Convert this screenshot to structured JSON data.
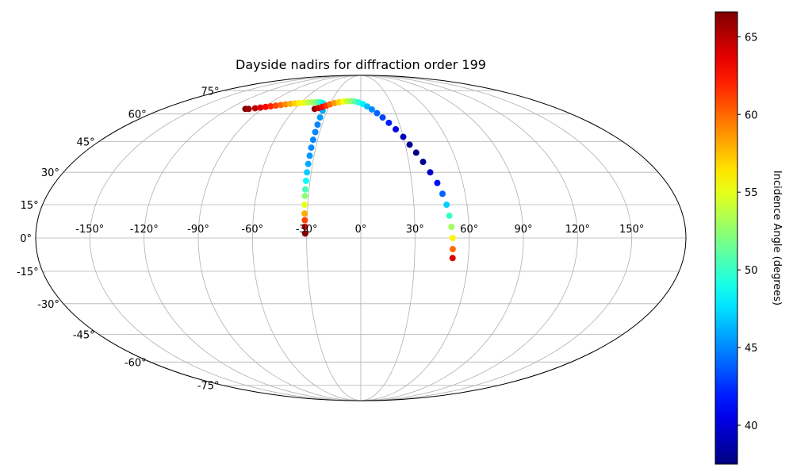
{
  "chart_data": {
    "type": "scatter",
    "projection": "mollweide",
    "title": "Dayside nadirs for diffraction order 199",
    "grid": true,
    "lon_ticks": [
      -150,
      -120,
      -90,
      -60,
      -30,
      0,
      30,
      60,
      90,
      120,
      150
    ],
    "lat_ticks": [
      -75,
      -60,
      -45,
      -30,
      -15,
      0,
      15,
      30,
      45,
      60,
      75
    ],
    "lon_tick_labels": [
      "-150°",
      "-120°",
      "-90°",
      "-60°",
      "-30°",
      "0°",
      "30°",
      "60°",
      "90°",
      "120°",
      "150°"
    ],
    "lat_tick_labels": [
      "-75°",
      "-60°",
      "-45°",
      "-30°",
      "-15°",
      "0°",
      "15°",
      "30°",
      "45°",
      "60°",
      "75°"
    ],
    "colorbar": {
      "label": "Incidence Angle (degrees)",
      "colormap": "jet",
      "range": [
        37.5,
        66.6
      ],
      "ticks": [
        40,
        45,
        50,
        55,
        60,
        65
      ],
      "tick_labels": [
        "40",
        "45",
        "50",
        "55",
        "60",
        "65"
      ]
    },
    "series": [
      {
        "lon": [
          -105,
          -102,
          -97,
          -93,
          -89,
          -85,
          -81,
          -77,
          -73,
          -69,
          -65,
          -61,
          -57,
          -53,
          -49,
          -45,
          -42,
          -40,
          -38,
          -36.5,
          -35,
          -34
        ],
        "lat": [
          63,
          63,
          63.4,
          63.8,
          64.2,
          64.6,
          65,
          65.4,
          65.8,
          66.1,
          66.4,
          66.6,
          66.8,
          67,
          67.1,
          67.2,
          67.1,
          67,
          66.7,
          66,
          65,
          62
        ],
        "incidence": [
          66.5,
          65.8,
          65,
          64,
          63,
          62,
          61,
          60,
          59,
          58,
          57,
          56,
          55,
          54,
          53,
          52,
          51,
          50,
          49,
          48,
          47,
          46
        ]
      },
      {
        "lon": [
          -33.6,
          -33.4,
          -33.2,
          -33.1,
          -33,
          -32.8,
          -32.7,
          -32.6,
          -32.4,
          -32.2,
          -32,
          -31.8,
          -31.5,
          -31.2,
          -31,
          -30.8
        ],
        "lat": [
          58,
          54,
          50,
          46,
          42,
          38,
          34,
          30,
          26,
          22,
          19,
          15,
          11,
          8,
          5,
          2
        ],
        "incidence": [
          45.5,
          45,
          45,
          45,
          45.2,
          45.5,
          46,
          47,
          48.5,
          50.5,
          52.5,
          55,
          58,
          61,
          64,
          66.5
        ]
      },
      {
        "lon": [
          -42,
          -39,
          -36,
          -33,
          -30,
          -26,
          -22,
          -18,
          -14,
          -10,
          -6,
          -2,
          2,
          6,
          10,
          14,
          18,
          22,
          26,
          30,
          33,
          36,
          39,
          42,
          45,
          47,
          48.5,
          49.5,
          50.3,
          50.8,
          51,
          51.2
        ],
        "lat": [
          63,
          63.5,
          64.2,
          65,
          65.8,
          66.6,
          67.2,
          67.6,
          67.8,
          67.8,
          67.6,
          67,
          66,
          64.5,
          62.7,
          60.5,
          58,
          55,
          51.5,
          47.5,
          43.5,
          39.5,
          35,
          30,
          25,
          20,
          15,
          10,
          5,
          0,
          -5,
          -9
        ],
        "incidence": [
          66,
          64.5,
          63,
          61.5,
          60,
          58.5,
          57,
          55.5,
          54,
          52.5,
          51,
          49.5,
          48,
          46.5,
          45,
          44,
          43,
          42,
          40.5,
          39,
          38,
          37.5,
          38,
          39.5,
          41.5,
          44,
          47,
          50,
          53,
          56,
          60,
          64
        ]
      }
    ]
  }
}
